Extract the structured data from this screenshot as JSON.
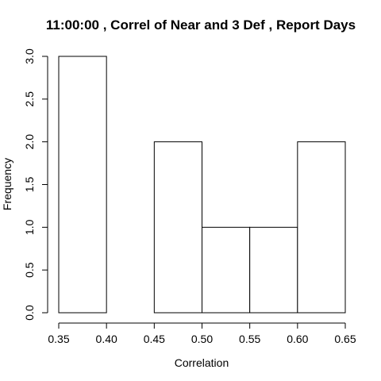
{
  "chart_data": {
    "type": "bar",
    "title": "11:00:00 , Correl of Near and 3 Def , Report Days",
    "xlabel": "Correlation",
    "ylabel": "Frequency",
    "bins": [
      {
        "start": 0.35,
        "end": 0.4,
        "count": 3
      },
      {
        "start": 0.4,
        "end": 0.45,
        "count": 0
      },
      {
        "start": 0.45,
        "end": 0.5,
        "count": 2
      },
      {
        "start": 0.5,
        "end": 0.55,
        "count": 1
      },
      {
        "start": 0.55,
        "end": 0.6,
        "count": 1
      },
      {
        "start": 0.6,
        "end": 0.65,
        "count": 2
      }
    ],
    "xlim": [
      0.35,
      0.65
    ],
    "ylim": [
      0,
      3
    ],
    "x_ticks": [
      0.35,
      0.4,
      0.45,
      0.5,
      0.55,
      0.6,
      0.65
    ],
    "x_tick_labels": [
      "0.35",
      "0.40",
      "0.45",
      "0.50",
      "0.55",
      "0.60",
      "0.65"
    ],
    "y_ticks": [
      0,
      0.5,
      1,
      1.5,
      2,
      2.5,
      3
    ],
    "y_tick_labels": [
      "0.0",
      "0.5",
      "1.0",
      "1.5",
      "2.0",
      "2.5",
      "3.0"
    ],
    "grid": false,
    "bar_fill": "#ffffff",
    "bar_stroke": "#000000"
  }
}
